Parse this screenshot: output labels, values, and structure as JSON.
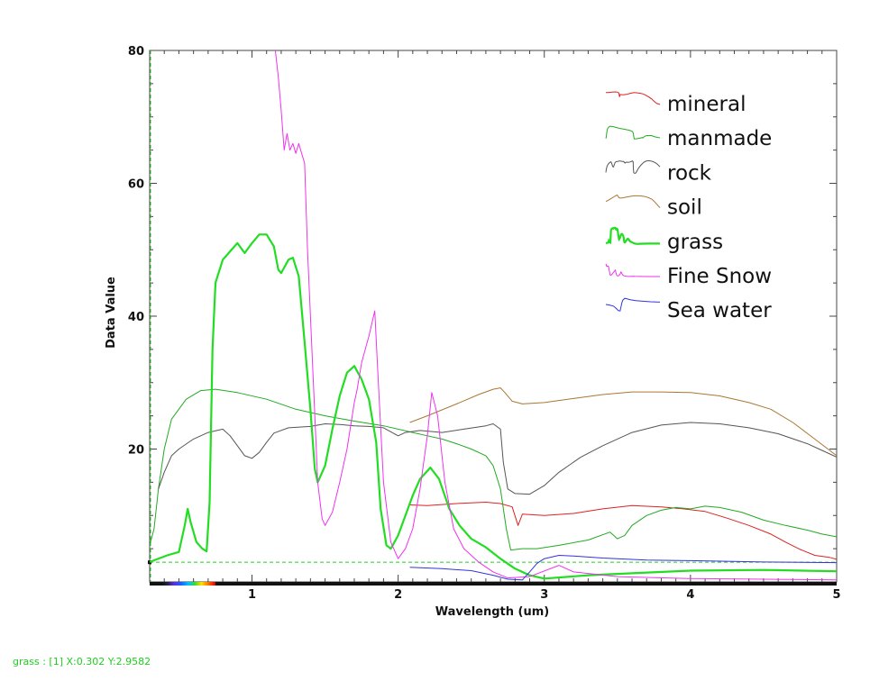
{
  "status": {
    "text": "grass : [1] X:0.302 Y:2.9582"
  },
  "chart_data": {
    "type": "line",
    "title": "",
    "xlabel": "Wavelength (um)",
    "ylabel": "Data Value",
    "xlim": [
      0.3,
      5.0
    ],
    "ylim": [
      0,
      80
    ],
    "x_ticks": [
      1,
      2,
      3,
      4,
      5
    ],
    "y_ticks": [
      20,
      40,
      60,
      80
    ],
    "grid": false,
    "legend_position": "top-right",
    "reference_line": {
      "y": 2.9582,
      "color": "#22cc22",
      "style": "dashed"
    },
    "series": [
      {
        "name": "mineral",
        "color": "#dd2222",
        "width": 1,
        "points": [
          [
            2.08,
            11.6
          ],
          [
            2.2,
            11.5
          ],
          [
            2.4,
            11.8
          ],
          [
            2.6,
            12.0
          ],
          [
            2.7,
            11.8
          ],
          [
            2.78,
            11.3
          ],
          [
            2.82,
            8.5
          ],
          [
            2.85,
            10.2
          ],
          [
            3.0,
            10.0
          ],
          [
            3.2,
            10.3
          ],
          [
            3.4,
            11.0
          ],
          [
            3.6,
            11.5
          ],
          [
            3.8,
            11.3
          ],
          [
            3.95,
            11.0
          ],
          [
            4.1,
            10.6
          ],
          [
            4.25,
            9.6
          ],
          [
            4.4,
            8.5
          ],
          [
            4.55,
            7.2
          ],
          [
            4.65,
            6.0
          ],
          [
            4.75,
            4.9
          ],
          [
            4.85,
            4.0
          ],
          [
            4.95,
            3.7
          ],
          [
            5.0,
            3.4
          ]
        ]
      },
      {
        "name": "manmade",
        "color": "#22aa22",
        "width": 1,
        "points": [
          [
            0.3,
            5.5
          ],
          [
            0.33,
            8.0
          ],
          [
            0.36,
            14.0
          ],
          [
            0.4,
            20.0
          ],
          [
            0.45,
            24.5
          ],
          [
            0.55,
            27.5
          ],
          [
            0.65,
            28.8
          ],
          [
            0.75,
            29.0
          ],
          [
            0.9,
            28.5
          ],
          [
            1.1,
            27.5
          ],
          [
            1.3,
            26.0
          ],
          [
            1.5,
            25.0
          ],
          [
            1.7,
            24.2
          ],
          [
            1.9,
            23.5
          ],
          [
            2.1,
            22.5
          ],
          [
            2.2,
            22.0
          ],
          [
            2.3,
            21.5
          ],
          [
            2.4,
            20.8
          ],
          [
            2.5,
            20.0
          ],
          [
            2.6,
            19.0
          ],
          [
            2.65,
            17.5
          ],
          [
            2.7,
            14.0
          ],
          [
            2.74,
            8.0
          ],
          [
            2.77,
            4.8
          ],
          [
            2.85,
            5.0
          ],
          [
            2.95,
            5.0
          ],
          [
            3.1,
            5.5
          ],
          [
            3.3,
            6.3
          ],
          [
            3.45,
            7.5
          ],
          [
            3.5,
            6.5
          ],
          [
            3.55,
            7.0
          ],
          [
            3.6,
            8.5
          ],
          [
            3.7,
            10.0
          ],
          [
            3.8,
            10.8
          ],
          [
            3.9,
            11.2
          ],
          [
            4.0,
            11.0
          ],
          [
            4.1,
            11.4
          ],
          [
            4.2,
            11.2
          ],
          [
            4.35,
            10.5
          ],
          [
            4.5,
            9.3
          ],
          [
            4.65,
            8.5
          ],
          [
            4.8,
            7.8
          ],
          [
            4.9,
            7.2
          ],
          [
            5.0,
            6.8
          ]
        ]
      },
      {
        "name": "rock",
        "color": "#555555",
        "width": 1,
        "points": [
          [
            0.36,
            14.0
          ],
          [
            0.4,
            16.5
          ],
          [
            0.45,
            19.0
          ],
          [
            0.5,
            20.0
          ],
          [
            0.6,
            21.5
          ],
          [
            0.7,
            22.5
          ],
          [
            0.8,
            23.0
          ],
          [
            0.85,
            22.0
          ],
          [
            0.9,
            20.5
          ],
          [
            0.95,
            19.0
          ],
          [
            1.0,
            18.6
          ],
          [
            1.05,
            19.5
          ],
          [
            1.1,
            21.0
          ],
          [
            1.15,
            22.4
          ],
          [
            1.25,
            23.2
          ],
          [
            1.4,
            23.4
          ],
          [
            1.5,
            23.8
          ],
          [
            1.6,
            23.7
          ],
          [
            1.7,
            23.5
          ],
          [
            1.8,
            23.4
          ],
          [
            1.9,
            23.2
          ],
          [
            2.0,
            22.0
          ],
          [
            2.05,
            22.5
          ],
          [
            2.15,
            22.8
          ],
          [
            2.3,
            22.5
          ],
          [
            2.45,
            23.0
          ],
          [
            2.6,
            23.5
          ],
          [
            2.65,
            23.8
          ],
          [
            2.7,
            23.0
          ],
          [
            2.72,
            18.0
          ],
          [
            2.75,
            14.0
          ],
          [
            2.8,
            13.3
          ],
          [
            2.9,
            13.2
          ],
          [
            3.0,
            14.5
          ],
          [
            3.1,
            16.5
          ],
          [
            3.25,
            18.8
          ],
          [
            3.4,
            20.5
          ],
          [
            3.6,
            22.5
          ],
          [
            3.8,
            23.6
          ],
          [
            4.0,
            24.0
          ],
          [
            4.2,
            23.8
          ],
          [
            4.4,
            23.2
          ],
          [
            4.6,
            22.3
          ],
          [
            4.8,
            20.8
          ],
          [
            4.9,
            19.8
          ],
          [
            5.0,
            18.8
          ]
        ]
      },
      {
        "name": "soil",
        "color": "#aa7733",
        "width": 1,
        "points": [
          [
            2.08,
            24.0
          ],
          [
            2.2,
            25.0
          ],
          [
            2.4,
            26.8
          ],
          [
            2.55,
            28.2
          ],
          [
            2.65,
            29.0
          ],
          [
            2.7,
            29.2
          ],
          [
            2.73,
            28.5
          ],
          [
            2.78,
            27.2
          ],
          [
            2.85,
            26.8
          ],
          [
            3.0,
            27.0
          ],
          [
            3.2,
            27.6
          ],
          [
            3.4,
            28.2
          ],
          [
            3.6,
            28.6
          ],
          [
            3.8,
            28.6
          ],
          [
            4.0,
            28.5
          ],
          [
            4.2,
            28.0
          ],
          [
            4.4,
            27.0
          ],
          [
            4.55,
            26.0
          ],
          [
            4.7,
            24.0
          ],
          [
            4.85,
            21.5
          ],
          [
            5.0,
            19.0
          ]
        ]
      },
      {
        "name": "grass",
        "color": "#22dd22",
        "width": 2.2,
        "points": [
          [
            0.3,
            3.0
          ],
          [
            0.42,
            4.0
          ],
          [
            0.5,
            4.5
          ],
          [
            0.54,
            8.5
          ],
          [
            0.56,
            11.0
          ],
          [
            0.58,
            9.0
          ],
          [
            0.62,
            6.0
          ],
          [
            0.66,
            5.0
          ],
          [
            0.69,
            4.6
          ],
          [
            0.71,
            12.0
          ],
          [
            0.73,
            35.0
          ],
          [
            0.75,
            45.0
          ],
          [
            0.8,
            48.5
          ],
          [
            0.9,
            51.0
          ],
          [
            0.95,
            49.5
          ],
          [
            1.0,
            51.0
          ],
          [
            1.05,
            52.3
          ],
          [
            1.1,
            52.3
          ],
          [
            1.15,
            50.5
          ],
          [
            1.18,
            47.0
          ],
          [
            1.2,
            46.5
          ],
          [
            1.25,
            48.5
          ],
          [
            1.28,
            48.8
          ],
          [
            1.32,
            46.0
          ],
          [
            1.36,
            36.0
          ],
          [
            1.4,
            26.0
          ],
          [
            1.43,
            17.0
          ],
          [
            1.45,
            15.0
          ],
          [
            1.5,
            17.5
          ],
          [
            1.55,
            23.0
          ],
          [
            1.6,
            28.0
          ],
          [
            1.65,
            31.5
          ],
          [
            1.7,
            32.5
          ],
          [
            1.75,
            30.5
          ],
          [
            1.8,
            27.5
          ],
          [
            1.85,
            21.0
          ],
          [
            1.88,
            11.0
          ],
          [
            1.92,
            5.5
          ],
          [
            1.95,
            5.0
          ],
          [
            2.0,
            7.0
          ],
          [
            2.05,
            10.0
          ],
          [
            2.1,
            13.0
          ],
          [
            2.15,
            15.5
          ],
          [
            2.22,
            17.2
          ],
          [
            2.28,
            15.5
          ],
          [
            2.35,
            11.0
          ],
          [
            2.42,
            8.5
          ],
          [
            2.5,
            6.5
          ],
          [
            2.6,
            5.2
          ],
          [
            2.7,
            3.5
          ],
          [
            2.8,
            2.0
          ],
          [
            2.9,
            1.0
          ],
          [
            3.0,
            0.5
          ],
          [
            3.3,
            1.0
          ],
          [
            3.6,
            1.3
          ],
          [
            4.0,
            1.7
          ],
          [
            4.5,
            1.8
          ],
          [
            5.0,
            1.6
          ]
        ]
      },
      {
        "name": "Fine Snow",
        "color": "#ee33ee",
        "width": 1,
        "points": [
          [
            1.16,
            80.0
          ],
          [
            1.18,
            76.0
          ],
          [
            1.2,
            71.0
          ],
          [
            1.22,
            65.0
          ],
          [
            1.24,
            67.5
          ],
          [
            1.26,
            65.0
          ],
          [
            1.28,
            66.0
          ],
          [
            1.3,
            64.5
          ],
          [
            1.32,
            66.0
          ],
          [
            1.34,
            64.5
          ],
          [
            1.36,
            63.0
          ],
          [
            1.38,
            50.0
          ],
          [
            1.42,
            30.0
          ],
          [
            1.45,
            15.0
          ],
          [
            1.48,
            9.5
          ],
          [
            1.5,
            8.5
          ],
          [
            1.55,
            10.5
          ],
          [
            1.6,
            15.0
          ],
          [
            1.65,
            20.0
          ],
          [
            1.7,
            27.0
          ],
          [
            1.72,
            29.0
          ],
          [
            1.75,
            33.0
          ],
          [
            1.8,
            37.0
          ],
          [
            1.84,
            40.8
          ],
          [
            1.86,
            32.0
          ],
          [
            1.9,
            15.0
          ],
          [
            1.95,
            6.0
          ],
          [
            2.0,
            3.5
          ],
          [
            2.05,
            5.0
          ],
          [
            2.1,
            8.0
          ],
          [
            2.15,
            14.0
          ],
          [
            2.2,
            22.0
          ],
          [
            2.23,
            28.5
          ],
          [
            2.27,
            25.0
          ],
          [
            2.32,
            15.0
          ],
          [
            2.38,
            8.0
          ],
          [
            2.45,
            5.0
          ],
          [
            2.55,
            3.0
          ],
          [
            2.65,
            1.5
          ],
          [
            2.75,
            0.6
          ],
          [
            2.9,
            0.8
          ],
          [
            3.1,
            2.5
          ],
          [
            3.2,
            1.5
          ],
          [
            3.5,
            0.8
          ],
          [
            4.0,
            0.5
          ],
          [
            4.5,
            0.4
          ],
          [
            5.0,
            0.3
          ]
        ]
      },
      {
        "name": "Sea water",
        "color": "#3333dd",
        "width": 1,
        "points": [
          [
            2.08,
            2.2
          ],
          [
            2.3,
            2.0
          ],
          [
            2.5,
            1.7
          ],
          [
            2.65,
            1.0
          ],
          [
            2.75,
            0.4
          ],
          [
            2.85,
            0.3
          ],
          [
            2.9,
            1.5
          ],
          [
            2.95,
            2.8
          ],
          [
            3.0,
            3.5
          ],
          [
            3.1,
            4.0
          ],
          [
            3.2,
            3.9
          ],
          [
            3.4,
            3.6
          ],
          [
            3.7,
            3.3
          ],
          [
            4.0,
            3.2
          ],
          [
            4.5,
            3.0
          ],
          [
            5.0,
            2.9
          ]
        ]
      }
    ]
  }
}
